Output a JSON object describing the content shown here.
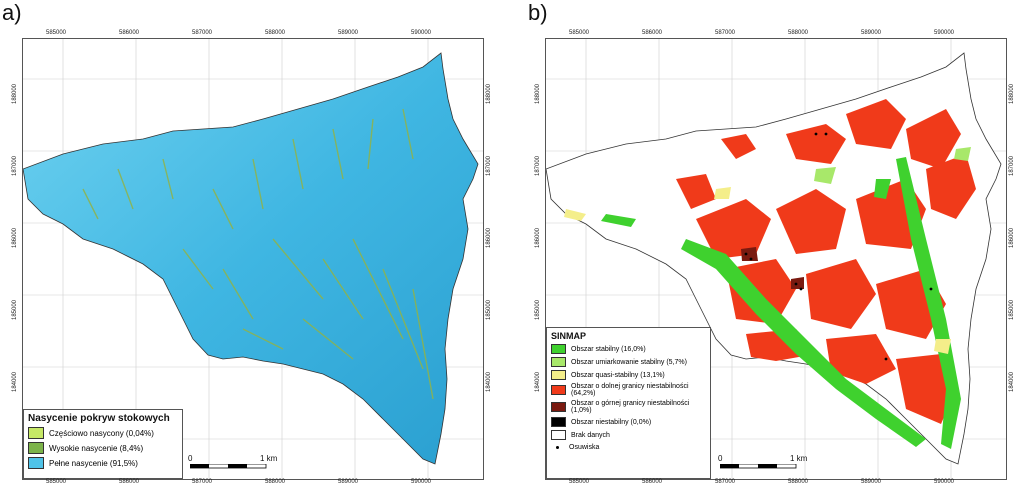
{
  "panel_a": {
    "label": "a)",
    "x_ticks": [
      "585000",
      "586000",
      "587000",
      "588000",
      "589000",
      "590000"
    ],
    "y_ticks": [
      "188000",
      "187000",
      "186000",
      "185000",
      "184000"
    ],
    "legend": {
      "title": "Nasycenie pokryw stokowych",
      "items": [
        {
          "label": "Częściowo nasycony (0,04%)",
          "color": "#c6e866"
        },
        {
          "label": "Wysokie nasycenie (8,4%)",
          "color": "#7cb34a"
        },
        {
          "label": "Pełne nasycenie   (91,5%)",
          "color": "#4fc3e8"
        }
      ]
    },
    "scalebar": {
      "start": "0",
      "end": "1 km"
    }
  },
  "panel_b": {
    "label": "b)",
    "x_ticks": [
      "585000",
      "586000",
      "587000",
      "588000",
      "589000",
      "590000"
    ],
    "y_ticks": [
      "188000",
      "187000",
      "186000",
      "185000",
      "184000"
    ],
    "legend": {
      "title": "SINMAP",
      "items": [
        {
          "label": "Obszar stabilny (16,0%)",
          "color": "#3fd12e"
        },
        {
          "label": "Obszar umiarkowanie stabilny (5,7%)",
          "color": "#a8e86a"
        },
        {
          "label": "Obszar quasi-stabilny (13,1%)",
          "color": "#f4ee8a"
        },
        {
          "label": "Obszar o dolnej granicy niestabilności (64,2%)",
          "color": "#f03a1a"
        },
        {
          "label": "Obszar o górnej  granicy niestabilności (1,0%)",
          "color": "#7a1a10"
        },
        {
          "label": "Obszar niestabilny (0,0%)",
          "color": "#000000"
        },
        {
          "label": "Brak danych",
          "color": "#ffffff"
        },
        {
          "label": "Osuwiska",
          "color": "#000000"
        }
      ]
    },
    "scalebar": {
      "start": "0",
      "end": "1 km"
    }
  }
}
